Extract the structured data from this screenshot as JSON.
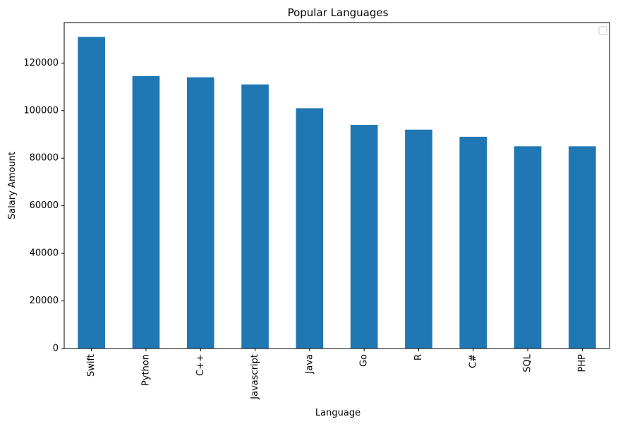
{
  "chart_data": {
    "type": "bar",
    "title": "Popular Languages",
    "xlabel": "Language",
    "ylabel": "Salary Amount",
    "categories": [
      "Swift",
      "Python",
      "C++",
      "Javascript",
      "Java",
      "Go",
      "R",
      "C#",
      "SQL",
      "PHP"
    ],
    "values": [
      131000,
      114500,
      114000,
      111000,
      101000,
      94000,
      92000,
      89000,
      85000,
      85000
    ],
    "ylim": [
      0,
      137000
    ],
    "yticks": [
      0,
      20000,
      40000,
      60000,
      80000,
      100000,
      120000
    ],
    "bar_color": "#1f77b4",
    "legend": {
      "placement": "upper right",
      "entries": []
    },
    "grid": false
  }
}
